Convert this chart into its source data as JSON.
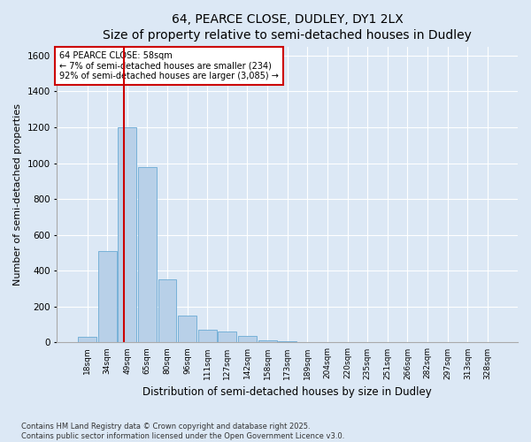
{
  "title": "64, PEARCE CLOSE, DUDLEY, DY1 2LX",
  "subtitle": "Size of property relative to semi-detached houses in Dudley",
  "xlabel": "Distribution of semi-detached houses by size in Dudley",
  "ylabel": "Number of semi-detached properties",
  "categories": [
    "18sqm",
    "34sqm",
    "49sqm",
    "65sqm",
    "80sqm",
    "96sqm",
    "111sqm",
    "127sqm",
    "142sqm",
    "158sqm",
    "173sqm",
    "189sqm",
    "204sqm",
    "220sqm",
    "235sqm",
    "251sqm",
    "266sqm",
    "282sqm",
    "297sqm",
    "313sqm",
    "328sqm"
  ],
  "values": [
    30,
    510,
    1200,
    980,
    350,
    150,
    70,
    60,
    35,
    10,
    5,
    2,
    1,
    0,
    0,
    0,
    0,
    0,
    0,
    0,
    0
  ],
  "bar_color": "#b8d0e8",
  "bar_edgecolor": "#6aaad4",
  "vline_color": "#cc0000",
  "vline_pos": 1.85,
  "annotation_title": "64 PEARCE CLOSE: 58sqm",
  "annotation_line1": "← 7% of semi-detached houses are smaller (234)",
  "annotation_line2": "92% of semi-detached houses are larger (3,085) →",
  "annotation_box_color": "#cc0000",
  "ylim": [
    0,
    1650
  ],
  "yticks": [
    0,
    200,
    400,
    600,
    800,
    1000,
    1200,
    1400,
    1600
  ],
  "footer1": "Contains HM Land Registry data © Crown copyright and database right 2025.",
  "footer2": "Contains public sector information licensed under the Open Government Licence v3.0.",
  "bg_color": "#dce8f5",
  "plot_bg_color": "#dce8f5",
  "title_fontsize": 10,
  "subtitle_fontsize": 9,
  "ylabel_fontsize": 8,
  "xlabel_fontsize": 8.5
}
